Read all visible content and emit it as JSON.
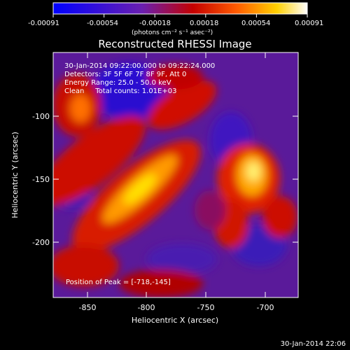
{
  "colorbar": {
    "tick_labels": [
      "-0.00091",
      "-0.00054",
      "-0.00018",
      "0.00018",
      "0.00054",
      "0.00091"
    ],
    "unit_label": "(photons cm⁻² s⁻¹ asec⁻²)"
  },
  "plot": {
    "title": "Reconstructed RHESSI Image",
    "xlabel": "Heliocentric X (arcsec)",
    "ylabel": "Heliocentric Y (arcsec)",
    "x_ticks": [
      "-850",
      "-800",
      "-750",
      "-700"
    ],
    "y_ticks": [
      "-100",
      "-150",
      "-200"
    ],
    "info_lines": [
      "30-Jan-2014 09:22:00.000 to 09:22:24.000",
      "Detectors: 3F 5F 6F 7F 8F 9F, Att 0",
      "Energy Range: 25.0 - 50.0 keV",
      "Clean     Total counts: 1.01E+03"
    ],
    "peak_label": "Position of Peak = [-718,-145]"
  },
  "footer": {
    "timestamp": "30-Jan-2014 22:06"
  }
}
